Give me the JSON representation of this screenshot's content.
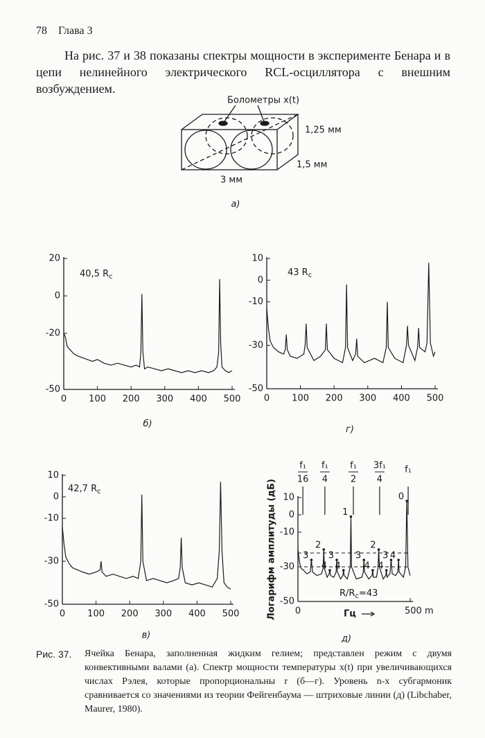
{
  "header": {
    "page": "78",
    "chapter": "Глава 3"
  },
  "intro": "На рис. 37 и 38 показаны спектры мощности в эксперименте Бенара и в цепи нелинейного электрического RCL-осциллятора с внешним возбуждением.",
  "figure_a": {
    "bolometers": "Болометры x(t)",
    "height": "1,25 мм",
    "depth": "1,5 мм",
    "width": "3 мм",
    "label": "а)"
  },
  "chart_data": [
    {
      "type": "line",
      "label": "б)",
      "annotation": "40,5 R",
      "annotation_sub": "c",
      "color": "#1a1a1a",
      "xlim": [
        0,
        500
      ],
      "ylim": [
        -50,
        20
      ],
      "xticks": [
        0,
        100,
        200,
        300,
        400,
        500
      ],
      "yticks": [
        20,
        0,
        -20,
        -50
      ],
      "x": [
        0,
        5,
        10,
        20,
        30,
        40,
        55,
        70,
        85,
        100,
        120,
        140,
        160,
        180,
        200,
        215,
        225,
        229,
        232,
        235,
        240,
        250,
        270,
        290,
        310,
        330,
        350,
        370,
        390,
        410,
        430,
        445,
        455,
        460,
        463,
        466,
        470,
        480,
        490,
        500
      ],
      "values": [
        -20,
        -22,
        -27,
        -29,
        -31,
        -32,
        -33,
        -34,
        -35,
        -34,
        -36,
        -37,
        -36,
        -37,
        -38,
        -37,
        -38,
        -30,
        1,
        -30,
        -39,
        -38,
        -39,
        -40,
        -39,
        -40,
        -41,
        -40,
        -41,
        -40,
        -41,
        -40,
        -38,
        -30,
        9,
        -25,
        -38,
        -40,
        -41,
        -40
      ]
    },
    {
      "type": "line",
      "label": "г)",
      "annotation": "43 R",
      "annotation_sub": "c",
      "color": "#1a1a1a",
      "xlim": [
        0,
        500
      ],
      "ylim": [
        -50,
        10
      ],
      "xticks": [
        0,
        100,
        200,
        300,
        400,
        500
      ],
      "yticks": [
        10,
        0,
        -10,
        -30,
        -50
      ],
      "x": [
        0,
        5,
        10,
        20,
        35,
        50,
        55,
        58,
        61,
        70,
        90,
        110,
        114,
        117,
        120,
        140,
        160,
        174,
        177,
        180,
        200,
        225,
        234,
        237,
        240,
        255,
        264,
        267,
        270,
        290,
        320,
        345,
        355,
        358,
        361,
        380,
        405,
        415,
        418,
        421,
        440,
        448,
        451,
        454,
        470,
        476,
        481,
        486,
        495,
        500
      ],
      "values": [
        -13,
        -22,
        -28,
        -31,
        -33,
        -34,
        -32,
        -25,
        -32,
        -35,
        -36,
        -34,
        -30,
        -20,
        -31,
        -37,
        -35,
        -32,
        -20,
        -32,
        -36,
        -38,
        -31,
        -2,
        -31,
        -37,
        -34,
        -27,
        -35,
        -38,
        -36,
        -38,
        -31,
        -10,
        -31,
        -36,
        -38,
        -30,
        -21,
        -30,
        -37,
        -31,
        -22,
        -31,
        -33,
        -29,
        8,
        -29,
        -35,
        -33
      ]
    },
    {
      "type": "line",
      "label": "в)",
      "annotation": "42,7 R",
      "annotation_sub": "c",
      "color": "#1a1a1a",
      "xlim": [
        0,
        500
      ],
      "ylim": [
        -50,
        10
      ],
      "xticks": [
        0,
        100,
        200,
        300,
        400,
        500
      ],
      "yticks": [
        10,
        0,
        -10,
        -30,
        -50
      ],
      "x": [
        0,
        5,
        10,
        20,
        30,
        45,
        60,
        80,
        100,
        112,
        115,
        118,
        130,
        150,
        170,
        190,
        210,
        225,
        233,
        236,
        239,
        250,
        270,
        290,
        310,
        330,
        345,
        350,
        353,
        356,
        365,
        385,
        405,
        425,
        445,
        460,
        466,
        470,
        474,
        480,
        490,
        500
      ],
      "values": [
        -14,
        -22,
        -28,
        -31,
        -33,
        -34,
        -35,
        -36,
        -35,
        -34,
        -30,
        -35,
        -37,
        -36,
        -37,
        -38,
        -37,
        -38,
        -30,
        1,
        -30,
        -39,
        -38,
        -39,
        -40,
        -39,
        -38,
        -33,
        -19,
        -33,
        -40,
        -41,
        -40,
        -41,
        -42,
        -38,
        -25,
        7,
        -25,
        -40,
        -42,
        -43
      ]
    },
    {
      "type": "line",
      "label": "д)",
      "ylabel": "Логарифм амплитуды (дБ)",
      "xlabel": "Гц",
      "color": "#1a1a1a",
      "ratio_label": "R/R",
      "ratio_sub": "c",
      "ratio_rest": "=43",
      "xlim": [
        0,
        500
      ],
      "ylim": [
        -50,
        10
      ],
      "xticks": [
        0,
        {
          "value": 500,
          "label": "500 m"
        }
      ],
      "yticks": [
        10,
        0,
        -10,
        -30,
        -50
      ],
      "reference_lines": [
        -22,
        -30
      ],
      "markers": [
        {
          "num": "f₁",
          "den": "16",
          "x": 22
        },
        {
          "num": "f₁",
          "den": "4",
          "x": 120
        },
        {
          "num": "f₁",
          "den": "2",
          "x": 247
        },
        {
          "num": "3f₁",
          "den": "4",
          "x": 364
        },
        {
          "num": "f₁",
          "x": 491
        }
      ],
      "peak_labels": [
        {
          "text": "1",
          "x": 236,
          "y": -1
        },
        {
          "text": "2",
          "x": 115,
          "y": -20
        },
        {
          "text": "2",
          "x": 360,
          "y": -20
        },
        {
          "text": "0",
          "x": 485,
          "y": 8
        },
        {
          "text": "3",
          "x": 60,
          "y": -26
        },
        {
          "text": "3",
          "x": 173,
          "y": -26
        },
        {
          "text": "3",
          "x": 294,
          "y": -26
        },
        {
          "text": "3",
          "x": 415,
          "y": -26
        },
        {
          "text": "4",
          "x": 142,
          "y": -32
        },
        {
          "text": "4",
          "x": 203,
          "y": -32
        },
        {
          "text": "4",
          "x": 333,
          "y": -32
        },
        {
          "text": "4",
          "x": 394,
          "y": -32
        },
        {
          "text": "4",
          "x": 448,
          "y": -26
        }
      ],
      "x": [
        0,
        4,
        8,
        15,
        25,
        40,
        55,
        60,
        65,
        85,
        105,
        112,
        115,
        118,
        130,
        139,
        142,
        145,
        160,
        170,
        173,
        176,
        190,
        200,
        203,
        206,
        220,
        233,
        236,
        239,
        260,
        285,
        291,
        294,
        297,
        315,
        330,
        333,
        336,
        350,
        357,
        360,
        363,
        380,
        391,
        394,
        397,
        410,
        415,
        420,
        435,
        445,
        448,
        451,
        470,
        480,
        485,
        490,
        500
      ],
      "values": [
        -20,
        -24,
        -28,
        -31,
        -32,
        -34,
        -33,
        -26,
        -33,
        -35,
        -34,
        -31,
        -20,
        -31,
        -36,
        -34,
        -32,
        -35,
        -36,
        -33,
        -26,
        -33,
        -37,
        -35,
        -32,
        -35,
        -37,
        -30,
        -1,
        -30,
        -37,
        -36,
        -33,
        -26,
        -33,
        -37,
        -35,
        -32,
        -36,
        -36,
        -30,
        -20,
        -30,
        -37,
        -35,
        -32,
        -36,
        -34,
        -26,
        -34,
        -35,
        -33,
        -26,
        -33,
        -36,
        -30,
        8,
        -30,
        -35
      ]
    }
  ],
  "caption": {
    "number": "Рис. 37.",
    "text": "Ячейка Бенара, заполненная жидким гелием; представлен режим с двумя конвективными валами (а). Спектр мощности температуры x(t) при увеличивающихся числах Рэлея, которые пропорциональны r (б—г). Уровень n-х субгармоник сравнивается со значениями из теории Фейгенбаума — штриховые линии (д) (Libchaber, Maurer, 1980)."
  }
}
